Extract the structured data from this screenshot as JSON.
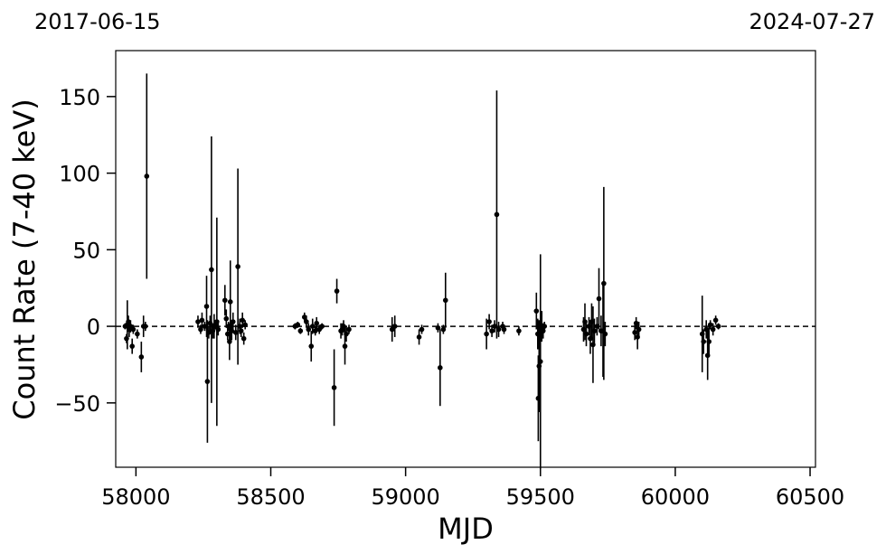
{
  "chart_data": {
    "type": "scatter",
    "title": "",
    "xlabel": "MJD",
    "ylabel": "Count Rate (7-40 keV)",
    "xlim": [
      57925,
      60520
    ],
    "ylim": [
      -92,
      180
    ],
    "x_ticks": [
      58000,
      58500,
      59000,
      59500,
      60000,
      60500
    ],
    "y_ticks": [
      -50,
      0,
      50,
      100,
      150
    ],
    "x_tick_labels": [
      "58000",
      "58500",
      "59000",
      "59500",
      "60000",
      "60500"
    ],
    "y_tick_labels": [
      "−50",
      "0",
      "50",
      "100",
      "150"
    ],
    "top_left_date": "2017-06-15",
    "top_right_date": "2024-07-27",
    "reference_line": {
      "y": 0,
      "style": "dashed"
    },
    "grid": false,
    "marker_color": "#000000",
    "series": [
      {
        "points": [
          [
            57960,
            0,
            2
          ],
          [
            57965,
            -8,
            3
          ],
          [
            57968,
            1,
            16
          ],
          [
            57972,
            3,
            4
          ],
          [
            57975,
            -2,
            5
          ],
          [
            57980,
            0,
            4
          ],
          [
            57986,
            -13,
            5
          ],
          [
            57990,
            -2,
            3
          ],
          [
            58005,
            -5,
            3
          ],
          [
            58020,
            -20,
            10
          ],
          [
            58028,
            0,
            7
          ],
          [
            58035,
            0,
            3
          ],
          [
            58040,
            98,
            67
          ],
          [
            58230,
            3,
            4
          ],
          [
            58240,
            -2,
            3
          ],
          [
            58245,
            4,
            5
          ],
          [
            58255,
            0,
            3
          ],
          [
            58262,
            13,
            20
          ],
          [
            58265,
            -36,
            40
          ],
          [
            58270,
            -4,
            4
          ],
          [
            58275,
            2,
            5
          ],
          [
            58280,
            37,
            87
          ],
          [
            58285,
            -3,
            5
          ],
          [
            58290,
            0,
            8
          ],
          [
            58295,
            1,
            3
          ],
          [
            58300,
            3,
            68
          ],
          [
            58305,
            -2,
            4
          ],
          [
            58330,
            17,
            10
          ],
          [
            58335,
            5,
            6
          ],
          [
            58340,
            -5,
            4
          ],
          [
            58343,
            0,
            3
          ],
          [
            58347,
            -10,
            12
          ],
          [
            58350,
            16,
            27
          ],
          [
            58355,
            -3,
            6
          ],
          [
            58360,
            3,
            6
          ],
          [
            58370,
            -4,
            5
          ],
          [
            58378,
            39,
            64
          ],
          [
            58385,
            0,
            5
          ],
          [
            58390,
            -3,
            4
          ],
          [
            58395,
            4,
            5
          ],
          [
            58400,
            -8,
            4
          ],
          [
            58405,
            1,
            3
          ],
          [
            58590,
            0,
            2
          ],
          [
            58600,
            1,
            2
          ],
          [
            58610,
            -3,
            2
          ],
          [
            58625,
            6,
            3
          ],
          [
            58632,
            3,
            4
          ],
          [
            58640,
            -2,
            4
          ],
          [
            58650,
            -13,
            10
          ],
          [
            58655,
            0,
            5
          ],
          [
            58665,
            -3,
            3
          ],
          [
            58670,
            2,
            4
          ],
          [
            58680,
            -2,
            3
          ],
          [
            58690,
            0,
            2
          ],
          [
            58735,
            -40,
            25
          ],
          [
            58745,
            23,
            8
          ],
          [
            58760,
            -3,
            5
          ],
          [
            58765,
            -2,
            4
          ],
          [
            58770,
            0,
            4
          ],
          [
            58775,
            -13,
            12
          ],
          [
            58780,
            -5,
            5
          ],
          [
            58790,
            -2,
            3
          ],
          [
            58950,
            -2,
            8
          ],
          [
            58960,
            0,
            7
          ],
          [
            59050,
            -7,
            5
          ],
          [
            59060,
            -2,
            3
          ],
          [
            59120,
            -1,
            3
          ],
          [
            59128,
            -27,
            25
          ],
          [
            59140,
            -2,
            3
          ],
          [
            59148,
            17,
            18
          ],
          [
            59300,
            -5,
            10
          ],
          [
            59310,
            3,
            5
          ],
          [
            59320,
            -3,
            4
          ],
          [
            59330,
            0,
            4
          ],
          [
            59338,
            73,
            81
          ],
          [
            59345,
            -2,
            5
          ],
          [
            59360,
            0,
            3
          ],
          [
            59365,
            -2,
            3
          ],
          [
            59420,
            -3,
            3
          ],
          [
            59485,
            10,
            12
          ],
          [
            59490,
            -5,
            10
          ],
          [
            59492,
            -47,
            28
          ],
          [
            59495,
            -26,
            30
          ],
          [
            59500,
            -23,
            70
          ],
          [
            59505,
            0,
            10
          ],
          [
            59510,
            -3,
            5
          ],
          [
            59515,
            0,
            3
          ],
          [
            59660,
            -2,
            8
          ],
          [
            59665,
            3,
            12
          ],
          [
            59670,
            -5,
            8
          ],
          [
            59680,
            0,
            6
          ],
          [
            59685,
            -8,
            10
          ],
          [
            59690,
            3,
            12
          ],
          [
            59695,
            -12,
            25
          ],
          [
            59700,
            -3,
            8
          ],
          [
            59710,
            0,
            6
          ],
          [
            59717,
            18,
            20
          ],
          [
            59725,
            -3,
            10
          ],
          [
            59732,
            -3,
            30
          ],
          [
            59735,
            28,
            63
          ],
          [
            59740,
            -5,
            8
          ],
          [
            59850,
            -4,
            5
          ],
          [
            59855,
            2,
            4
          ],
          [
            59860,
            -7,
            8
          ],
          [
            59865,
            -2,
            5
          ],
          [
            60100,
            -5,
            25
          ],
          [
            60105,
            -10,
            8
          ],
          [
            60115,
            -2,
            6
          ],
          [
            60120,
            -19,
            16
          ],
          [
            60125,
            -10,
            10
          ],
          [
            60130,
            1,
            3
          ],
          [
            60140,
            -2,
            4
          ],
          [
            60150,
            4,
            3
          ],
          [
            60160,
            0,
            2
          ]
        ]
      }
    ]
  }
}
